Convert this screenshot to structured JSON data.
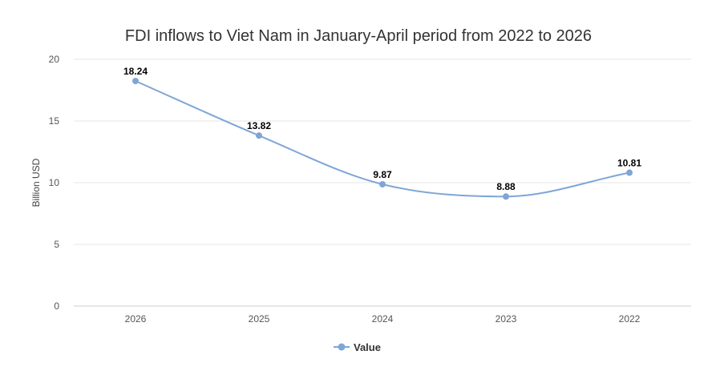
{
  "chart_data": {
    "type": "line",
    "title": "FDI inflows to Viet Nam in January-April period from 2022 to 2026",
    "xlabel": "",
    "ylabel": "Billion USD",
    "categories": [
      "2026",
      "2025",
      "2024",
      "2023",
      "2022"
    ],
    "series": [
      {
        "name": "Value",
        "values": [
          18.24,
          13.82,
          9.87,
          8.88,
          10.81
        ],
        "color": "#7ea6d6"
      }
    ],
    "data_labels": [
      "18.24",
      "13.82",
      "9.87",
      "8.88",
      "10.81"
    ],
    "ylim": [
      0,
      20
    ],
    "yticks": [
      0,
      5,
      10,
      15,
      20
    ],
    "grid": true,
    "legend_position": "bottom-center",
    "smooth": true
  }
}
